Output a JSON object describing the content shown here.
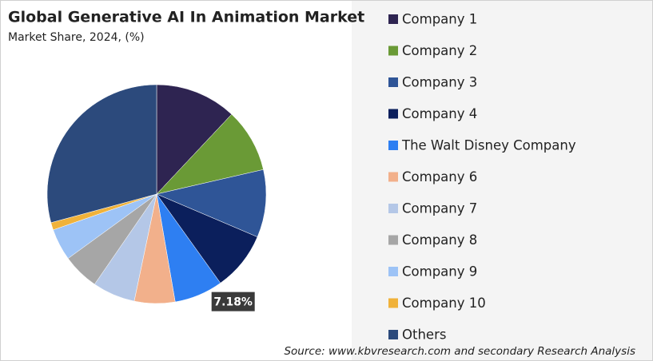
{
  "chart_data": {
    "type": "pie",
    "title": "Global Generative AI In Animation Market",
    "subtitle": "Market Share, 2024, (%)",
    "source": "Source: www.kbvresearch.com and secondary Research Analysis",
    "categories": [
      "Company 1",
      "Company 2",
      "Company 3",
      "Company 4",
      "The Walt Disney Company",
      "Company 6",
      "Company 7",
      "Company 8",
      "Company 9",
      "Company 10",
      "Others"
    ],
    "values": [
      12.0,
      9.4,
      10.0,
      8.7,
      7.18,
      6.0,
      6.3,
      5.4,
      4.7,
      1.1,
      29.2
    ],
    "value_labels": [
      null,
      null,
      null,
      null,
      "7.18%",
      null,
      null,
      null,
      null,
      null,
      null
    ],
    "colors": [
      "#2e2451",
      "#6a9a36",
      "#2f5597",
      "#0b1f5c",
      "#2e7ff2",
      "#f2b08b",
      "#b4c7e7",
      "#a6a6a6",
      "#9dc3f6",
      "#f0b23a",
      "#2c4a7c"
    ],
    "legend": "right"
  }
}
